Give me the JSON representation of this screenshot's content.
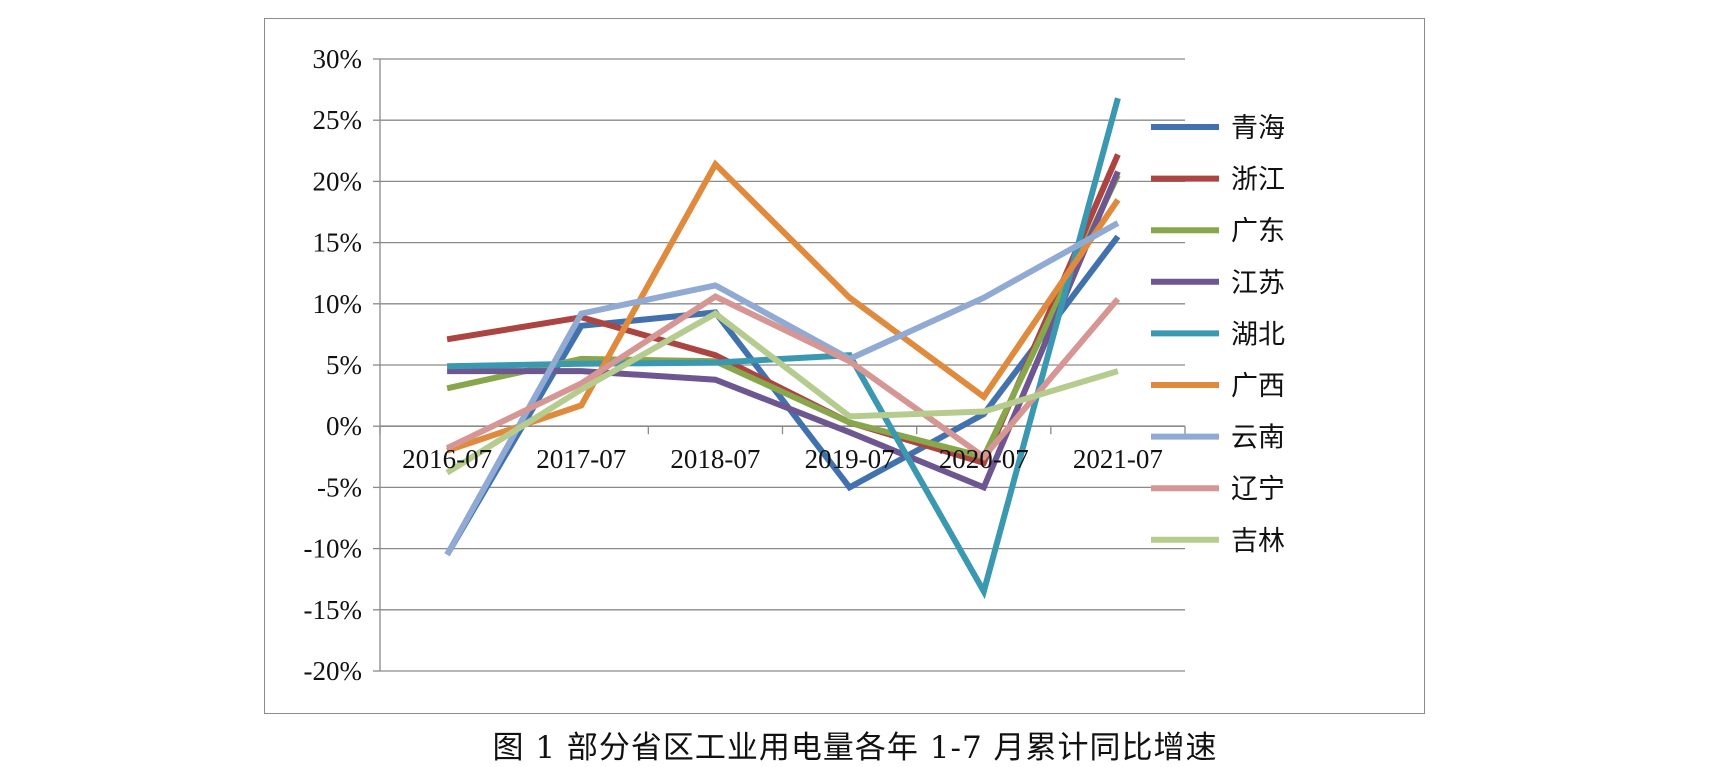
{
  "caption": "图 1  部分省区工业用电量各年 1-7 月累计同比增速",
  "chart_data": {
    "type": "line",
    "title": "",
    "xlabel": "",
    "ylabel": "",
    "categories": [
      "2016-07",
      "2017-07",
      "2018-07",
      "2019-07",
      "2020-07",
      "2021-07"
    ],
    "ylim": [
      -0.2,
      0.3
    ],
    "yticks": [
      0.3,
      0.25,
      0.2,
      0.15,
      0.1,
      0.05,
      0.0,
      -0.05,
      -0.1,
      -0.15,
      -0.2
    ],
    "ytick_labels": [
      "30%",
      "25%",
      "20%",
      "15%",
      "10%",
      "5%",
      "0%",
      "-5%",
      "-10%",
      "-15%",
      "-20%"
    ],
    "grid": true,
    "legend_position": "right",
    "series": [
      {
        "name": "青海",
        "color": "#4272ae",
        "values": [
          -0.105,
          0.082,
          0.093,
          -0.05,
          0.01,
          0.155
        ]
      },
      {
        "name": "浙江",
        "color": "#ac4441",
        "values": [
          0.071,
          0.089,
          0.058,
          0.003,
          -0.03,
          0.222
        ]
      },
      {
        "name": "广东",
        "color": "#88a64c",
        "values": [
          0.031,
          0.055,
          0.053,
          0.003,
          -0.025,
          0.205
        ]
      },
      {
        "name": "江苏",
        "color": "#6e5690",
        "values": [
          0.045,
          0.045,
          0.038,
          -0.005,
          -0.05,
          0.208
        ]
      },
      {
        "name": "湖北",
        "color": "#3a98b0",
        "values": [
          0.049,
          0.051,
          0.052,
          0.058,
          -0.135,
          0.268
        ]
      },
      {
        "name": "广西",
        "color": "#e08a3e",
        "values": [
          -0.02,
          0.017,
          0.214,
          0.105,
          0.024,
          0.185
        ]
      },
      {
        "name": "云南",
        "color": "#91aad4",
        "values": [
          -0.105,
          0.092,
          0.115,
          0.055,
          0.105,
          0.166
        ]
      },
      {
        "name": "辽宁",
        "color": "#d69693",
        "values": [
          -0.018,
          0.035,
          0.106,
          0.053,
          -0.025,
          0.104
        ]
      },
      {
        "name": "吉林",
        "color": "#b5cc8e",
        "values": [
          -0.038,
          0.03,
          0.092,
          0.008,
          0.012,
          0.045
        ]
      }
    ]
  }
}
